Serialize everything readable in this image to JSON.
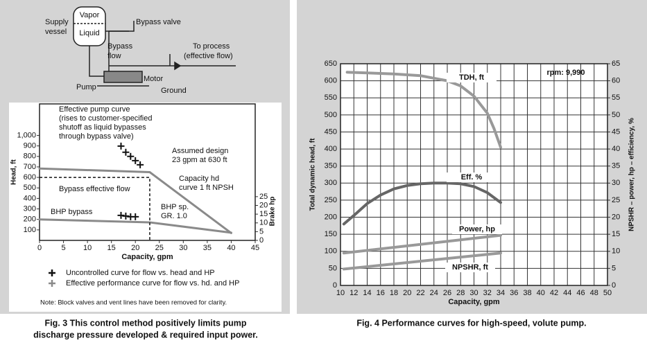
{
  "diagram": {
    "supply_vessel": [
      "Supply",
      "vessel"
    ],
    "vapor": "Vapor",
    "liquid": "Liquid",
    "bypass_valve": "Bypass valve",
    "bypass_flow": [
      "Bypass",
      "flow"
    ],
    "to_process": [
      "To process",
      "(effective flow)"
    ],
    "motor": "Motor",
    "pump": "Pump",
    "ground": "Ground"
  },
  "chart_data": [
    {
      "type": "line",
      "xlabel": "Capacity, gpm",
      "ylabel": "Head, ft",
      "y2label": "Brake hp",
      "xlim": [
        0,
        45
      ],
      "xticks": [
        0,
        5,
        10,
        15,
        20,
        25,
        30,
        35,
        40,
        45
      ],
      "ylim": [
        0,
        1300
      ],
      "yticks": [
        100,
        200,
        300,
        400,
        500,
        600,
        700,
        800,
        900,
        {
          "value": 1000,
          "label": "1,000"
        }
      ],
      "y2lim": [
        0,
        78
      ],
      "y2ticks": [
        0,
        5,
        10,
        15,
        20,
        25
      ],
      "series": [
        {
          "name": "Uncontrolled curve for flow vs. head and HP",
          "color": "#111",
          "marker": "plus",
          "x": [
            17,
            18,
            19,
            20,
            21
          ],
          "values": [
            898,
            840,
            800,
            760,
            720
          ]
        },
        {
          "color": "#111",
          "marker": "plus",
          "axis": "y2",
          "x": [
            17,
            18,
            19,
            20
          ],
          "values": [
            14.3,
            13.9,
            13.5,
            13.5
          ]
        },
        {
          "name": "Effective performance curve for flow vs. hd. and HP",
          "color": "#8a8a8a",
          "x": [
            0,
            23,
            40
          ],
          "values": [
            685,
            650,
            70
          ]
        },
        {
          "color": "#8a8a8a",
          "axis": "y2",
          "x": [
            0,
            23,
            40
          ],
          "values": [
            12,
            10.3,
            4.4
          ]
        }
      ],
      "dashed_limit": {
        "x": 23,
        "y": 600
      },
      "annotations": [
        [
          "Effective pump curve",
          "(rises to customer-specified",
          "shutoff as liquid bypasses",
          "through bypass valve)"
        ],
        [
          "Assumed design",
          "23 gpm at 630 ft"
        ],
        [
          "Capacity hd",
          "curve 1 ft NPSH"
        ],
        [
          "Bypass effective flow"
        ],
        [
          "BHP bypass"
        ],
        [
          "BHP sp.",
          "GR. 1.0"
        ]
      ],
      "note": "Note: Block valves and vent lines have been removed for clarity."
    },
    {
      "type": "line",
      "xlabel": "Capacity, gpm",
      "ylabel": "Total dynamic head, ft",
      "y2label": "NPSHR – power, hp – efficiency, %",
      "grid": true,
      "xlim": [
        10,
        50
      ],
      "xticks": [
        10,
        12,
        14,
        16,
        18,
        20,
        22,
        24,
        26,
        28,
        30,
        32,
        34,
        36,
        38,
        40,
        42,
        44,
        46,
        48,
        50
      ],
      "ylim": [
        0,
        650
      ],
      "yticks": [
        0,
        50,
        100,
        150,
        200,
        250,
        300,
        350,
        400,
        450,
        500,
        550,
        600,
        650
      ],
      "y2lim": [
        0,
        65
      ],
      "y2ticks": [
        0,
        5,
        10,
        15,
        20,
        25,
        30,
        35,
        40,
        45,
        50,
        55,
        60,
        65
      ],
      "annotation": "rpm: 9,990",
      "series": [
        {
          "name": "TDH, ft",
          "color": "#999",
          "x": [
            11,
            14,
            18,
            22,
            26,
            28,
            30,
            32,
            33,
            34
          ],
          "values": [
            625,
            623,
            620,
            615,
            600,
            585,
            555,
            505,
            460,
            405
          ]
        },
        {
          "name": "Eff. %",
          "color": "#666",
          "axis": "y2",
          "x": [
            10.5,
            12,
            14,
            16,
            18,
            20,
            22,
            24,
            26,
            28,
            30,
            32,
            34
          ],
          "values": [
            18,
            20.5,
            24,
            26.5,
            28.3,
            29.3,
            29.8,
            30,
            30,
            29.8,
            29,
            27.2,
            24.3
          ]
        },
        {
          "name": "Power, hp",
          "color": "#999",
          "axis": "y2",
          "x": [
            10.5,
            34
          ],
          "values": [
            9.5,
            14.7
          ]
        },
        {
          "name": "NPSHR, ft",
          "color": "#999",
          "axis": "y2",
          "x": [
            10.5,
            34
          ],
          "values": [
            4.8,
            9.5
          ]
        }
      ]
    }
  ],
  "captions": [
    [
      "Fig. 3 This control method positively limits pump",
      "discharge pressure developed & required input power."
    ],
    [
      "Fig. 4 Performance curves for high-speed, volute pump."
    ]
  ]
}
